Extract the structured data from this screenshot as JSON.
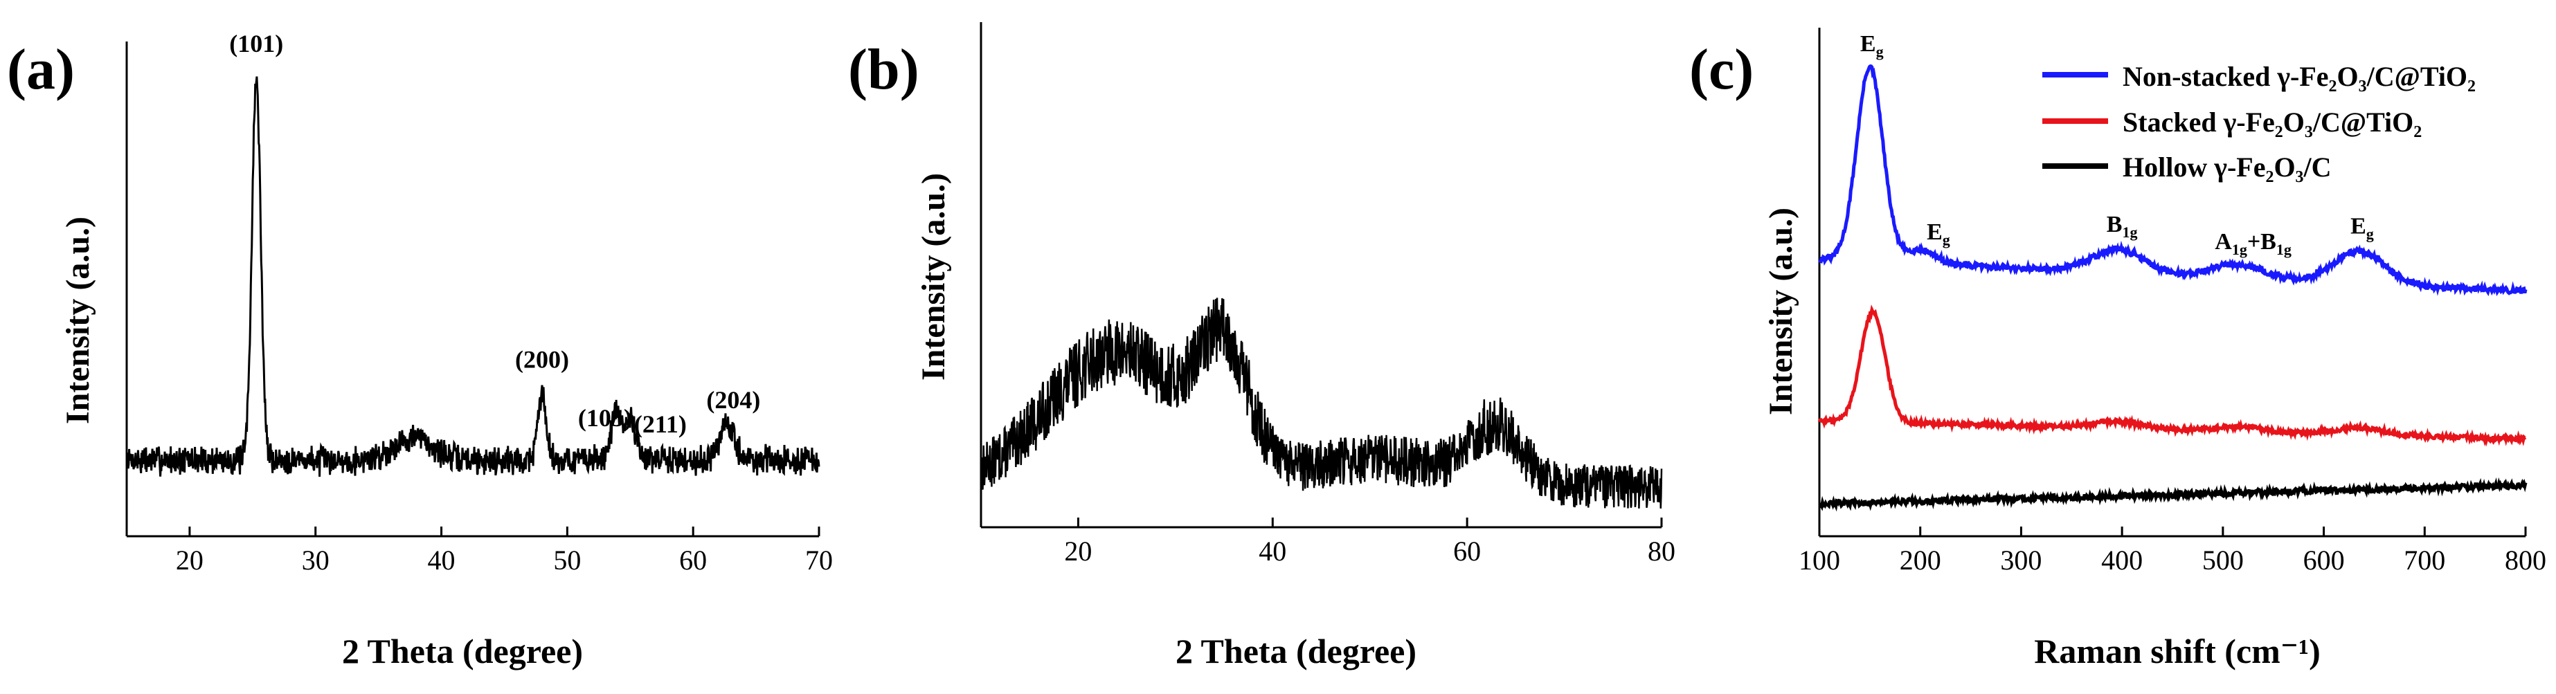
{
  "colors": {
    "non_stacked": "#1a1aff",
    "stacked": "#e8141b",
    "hollow": "#000000"
  },
  "chart_data": [
    {
      "type": "line",
      "panel_label": "(a)",
      "xlabel": "2 Theta (degree)",
      "ylabel": "Intensity (a.u.)",
      "xlim": [
        15,
        70
      ],
      "xticks": [
        20,
        30,
        40,
        50,
        60,
        70
      ],
      "y_ticks_shown": false,
      "baseline": 0.2,
      "noise": 0.03,
      "peaks": [
        {
          "x": 25.3,
          "height": 1.0,
          "width": 0.35
        },
        {
          "x": 37.8,
          "height": 0.06,
          "width": 1.5
        },
        {
          "x": 48.0,
          "height": 0.17,
          "width": 0.35
        },
        {
          "x": 53.9,
          "height": 0.12,
          "width": 0.45
        },
        {
          "x": 55.1,
          "height": 0.1,
          "width": 0.45
        },
        {
          "x": 62.7,
          "height": 0.09,
          "width": 0.6
        }
      ],
      "annotations": [
        {
          "text": "(101)",
          "x": 25.3
        },
        {
          "text": "(200)",
          "x": 48.0
        },
        {
          "text": "(105)",
          "x": 53.0
        },
        {
          "text": "(211)",
          "x": 57.4
        },
        {
          "text": "(204)",
          "x": 63.2
        }
      ]
    },
    {
      "type": "line",
      "panel_label": "(b)",
      "xlabel": "2 Theta (degree)",
      "ylabel": "Intensity (a.u.)",
      "xlim": [
        10,
        80
      ],
      "xticks": [
        20,
        40,
        60,
        80
      ],
      "y_ticks_shown": false,
      "baseline": 0.06,
      "noise": 0.05,
      "humps": [
        {
          "x": 24,
          "height": 0.2,
          "width": 7
        },
        {
          "x": 35,
          "height": 0.17,
          "width": 2.5
        },
        {
          "x": 51,
          "height": 0.04,
          "width": 8
        },
        {
          "x": 63,
          "height": 0.08,
          "width": 2.5
        }
      ]
    },
    {
      "type": "line",
      "panel_label": "(c)",
      "xlabel": "Raman shift (cm⁻¹)",
      "ylabel": "Intensity (a.u.)",
      "xlim": [
        100,
        800
      ],
      "xticks": [
        100,
        200,
        300,
        400,
        500,
        600,
        700,
        800
      ],
      "y_ticks_shown": false,
      "legend_position": "top-right",
      "series": [
        {
          "name": "Non-stacked γ-Fe₂O₃/C@TiO₂",
          "color_key": "non_stacked",
          "baseline_start": 0.55,
          "baseline_end": 0.48,
          "noise": 0.006,
          "peaks": [
            {
              "x": 150,
              "height": 0.42,
              "width": 13
            },
            {
              "x": 200,
              "height": 0.03,
              "width": 15
            },
            {
              "x": 396,
              "height": 0.05,
              "width": 25
            },
            {
              "x": 515,
              "height": 0.03,
              "width": 25
            },
            {
              "x": 635,
              "height": 0.07,
              "width": 25
            }
          ]
        },
        {
          "name": "Stacked γ-Fe₂O₃/C@TiO₂",
          "color_key": "stacked",
          "baseline_start": 0.2,
          "baseline_end": 0.16,
          "noise": 0.005,
          "peaks": [
            {
              "x": 153,
              "height": 0.24,
              "width": 12
            },
            {
              "x": 396,
              "height": 0.015,
              "width": 25
            },
            {
              "x": 515,
              "height": 0.01,
              "width": 25
            },
            {
              "x": 635,
              "height": 0.015,
              "width": 25
            }
          ]
        },
        {
          "name": "Hollow γ-Fe₂O₃/C",
          "color_key": "hollow",
          "baseline_start": 0.02,
          "baseline_end": 0.06,
          "noise": 0.006,
          "peaks": []
        }
      ],
      "annotations": [
        {
          "text": "E",
          "sub": "g",
          "x": 152,
          "series": 0
        },
        {
          "text": "E",
          "sub": "g",
          "x": 218,
          "series": 0
        },
        {
          "text": "B",
          "sub": "1g",
          "x": 400,
          "series": 0
        },
        {
          "text": "A",
          "sub": "1g",
          "text2": "+B",
          "sub2": "1g",
          "x": 530,
          "series": 0
        },
        {
          "text": "E",
          "sub": "g",
          "x": 638,
          "series": 0
        }
      ]
    }
  ]
}
